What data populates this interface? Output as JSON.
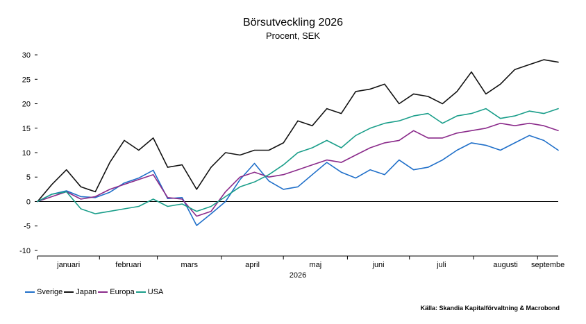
{
  "chart_data": {
    "type": "line",
    "title": "Börsutveckling 2026",
    "subtitle": "Procent, SEK",
    "xlabel": "2026",
    "ylabel": "",
    "ylim": [
      -11,
      31
    ],
    "yticks": [
      30,
      25,
      20,
      15,
      10,
      5,
      0,
      -5,
      -10
    ],
    "months": [
      "januari",
      "februari",
      "mars",
      "april",
      "maj",
      "juni",
      "juli",
      "augusti",
      "septembe"
    ],
    "x_start": "2026-01-02",
    "x_end": "2026-09-11",
    "source": "Källa: Skandia Kapitalförvaltning & Macrobond",
    "series": [
      {
        "name": "Sverige",
        "color": "#1f6fc9",
        "x": [
          "2026-01-02",
          "2026-01-09",
          "2026-01-16",
          "2026-01-23",
          "2026-01-30",
          "2026-02-06",
          "2026-02-13",
          "2026-02-20",
          "2026-02-27",
          "2026-03-06",
          "2026-03-13",
          "2026-03-20",
          "2026-03-27",
          "2026-04-03",
          "2026-04-10",
          "2026-04-17",
          "2026-04-24",
          "2026-05-01",
          "2026-05-08",
          "2026-05-15",
          "2026-05-22",
          "2026-05-29",
          "2026-06-05",
          "2026-06-12",
          "2026-06-19",
          "2026-06-26",
          "2026-07-03",
          "2026-07-10",
          "2026-07-17",
          "2026-07-24",
          "2026-07-31",
          "2026-08-07",
          "2026-08-14",
          "2026-08-21",
          "2026-08-28",
          "2026-09-04",
          "2026-09-11"
        ],
        "y": [
          0,
          1.5,
          2.2,
          1.0,
          0.8,
          1.9,
          3.8,
          4.8,
          6.4,
          0.6,
          0.8,
          -4.9,
          -2.5,
          0,
          4.5,
          7.8,
          4.2,
          2.5,
          3.0,
          5.5,
          8.0,
          6.0,
          4.8,
          6.5,
          5.5,
          8.5,
          6.5,
          7.0,
          8.5,
          10.5,
          12.0,
          11.5,
          10.5,
          12.0,
          13.5,
          12.5,
          10.5
        ]
      },
      {
        "name": "Japan",
        "color": "#111111",
        "x": [
          "2026-01-02",
          "2026-01-09",
          "2026-01-16",
          "2026-01-23",
          "2026-01-30",
          "2026-02-06",
          "2026-02-13",
          "2026-02-20",
          "2026-02-27",
          "2026-03-06",
          "2026-03-13",
          "2026-03-20",
          "2026-03-27",
          "2026-04-03",
          "2026-04-10",
          "2026-04-17",
          "2026-04-24",
          "2026-05-01",
          "2026-05-08",
          "2026-05-15",
          "2026-05-22",
          "2026-05-29",
          "2026-06-05",
          "2026-06-12",
          "2026-06-19",
          "2026-06-26",
          "2026-07-03",
          "2026-07-10",
          "2026-07-17",
          "2026-07-24",
          "2026-07-31",
          "2026-08-07",
          "2026-08-14",
          "2026-08-21",
          "2026-08-28",
          "2026-09-04",
          "2026-09-11"
        ],
        "y": [
          0,
          3.5,
          6.5,
          3.0,
          2.0,
          8.0,
          12.5,
          10.5,
          13.0,
          7.0,
          7.5,
          2.5,
          7.0,
          10.0,
          9.5,
          10.5,
          10.5,
          12.0,
          16.5,
          15.5,
          19.0,
          18.0,
          22.5,
          23.0,
          24.0,
          20.0,
          22.0,
          21.5,
          20.0,
          22.5,
          26.5,
          22.0,
          24.0,
          27.0,
          28.0,
          29.0,
          28.5
        ]
      },
      {
        "name": "Europa",
        "color": "#8a2a8a",
        "x": [
          "2026-01-02",
          "2026-01-09",
          "2026-01-16",
          "2026-01-23",
          "2026-01-30",
          "2026-02-06",
          "2026-02-13",
          "2026-02-20",
          "2026-02-27",
          "2026-03-06",
          "2026-03-13",
          "2026-03-20",
          "2026-03-27",
          "2026-04-03",
          "2026-04-10",
          "2026-04-17",
          "2026-04-24",
          "2026-05-01",
          "2026-05-08",
          "2026-05-15",
          "2026-05-22",
          "2026-05-29",
          "2026-06-05",
          "2026-06-12",
          "2026-06-19",
          "2026-06-26",
          "2026-07-03",
          "2026-07-10",
          "2026-07-17",
          "2026-07-24",
          "2026-07-31",
          "2026-08-07",
          "2026-08-14",
          "2026-08-21",
          "2026-08-28",
          "2026-09-04",
          "2026-09-11"
        ],
        "y": [
          0,
          1.0,
          2.0,
          0.5,
          1.0,
          2.5,
          3.5,
          4.5,
          5.5,
          0.8,
          0.5,
          -3.0,
          -2.0,
          2.0,
          5.0,
          6.0,
          5.0,
          5.5,
          6.5,
          7.5,
          8.5,
          8.0,
          9.5,
          11.0,
          12.0,
          12.5,
          14.5,
          13.0,
          13.0,
          14.0,
          14.5,
          15.0,
          16.0,
          15.5,
          16.0,
          15.5,
          14.5
        ]
      },
      {
        "name": "USA",
        "color": "#1a9e8a",
        "x": [
          "2026-01-02",
          "2026-01-09",
          "2026-01-16",
          "2026-01-23",
          "2026-01-30",
          "2026-02-06",
          "2026-02-13",
          "2026-02-20",
          "2026-02-27",
          "2026-03-06",
          "2026-03-13",
          "2026-03-20",
          "2026-03-27",
          "2026-04-03",
          "2026-04-10",
          "2026-04-17",
          "2026-04-24",
          "2026-05-01",
          "2026-05-08",
          "2026-05-15",
          "2026-05-22",
          "2026-05-29",
          "2026-06-05",
          "2026-06-12",
          "2026-06-19",
          "2026-06-26",
          "2026-07-03",
          "2026-07-10",
          "2026-07-17",
          "2026-07-24",
          "2026-07-31",
          "2026-08-07",
          "2026-08-14",
          "2026-08-21",
          "2026-08-28",
          "2026-09-04",
          "2026-09-11"
        ],
        "y": [
          0,
          1.5,
          2.0,
          -1.5,
          -2.5,
          -2.0,
          -1.5,
          -1.0,
          0.5,
          -1.0,
          -0.5,
          -2.0,
          -1.0,
          1.0,
          3.0,
          4.0,
          5.5,
          7.5,
          10.0,
          11.0,
          12.5,
          11.0,
          13.5,
          15.0,
          16.0,
          16.5,
          17.5,
          18.0,
          16.0,
          17.5,
          18.0,
          19.0,
          17.0,
          17.5,
          18.5,
          18.0,
          19.0
        ]
      }
    ]
  }
}
